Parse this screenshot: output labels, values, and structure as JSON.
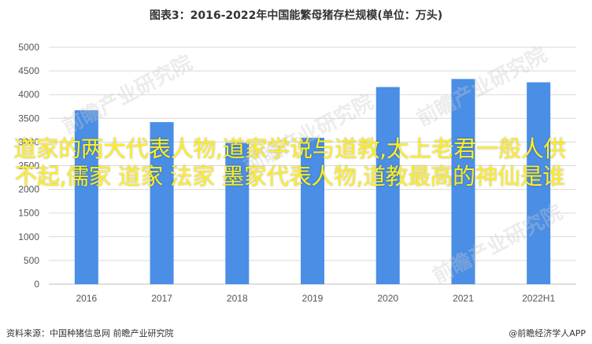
{
  "chart_data": {
    "type": "bar",
    "title": "图表3：2016-2022年中国能繁母猪存栏规模(单位：万头)",
    "categories": [
      "2016",
      "2017",
      "2018",
      "2019",
      "2020",
      "2021",
      "2022H1"
    ],
    "values": [
      3670,
      3420,
      2980,
      3090,
      4160,
      4330,
      4260
    ],
    "ylim": [
      0,
      5000
    ],
    "yticks": [
      0,
      500,
      1000,
      1500,
      2000,
      2500,
      3000,
      3500,
      4000,
      4500,
      5000
    ],
    "grid": true,
    "color": "#4a8ee6"
  },
  "footer": {
    "source": "资料来源：中国种猪信息网 前瞻产业研究院",
    "credit": "@前瞻经济学人APP"
  },
  "overlay_text": "道家的两大代表人物,道家学说与道教,太上老君一般人供不起,儒家 道家 法家 墨家代表人物,道教最高的神仙是谁",
  "watermark": "前瞻产业研究院"
}
